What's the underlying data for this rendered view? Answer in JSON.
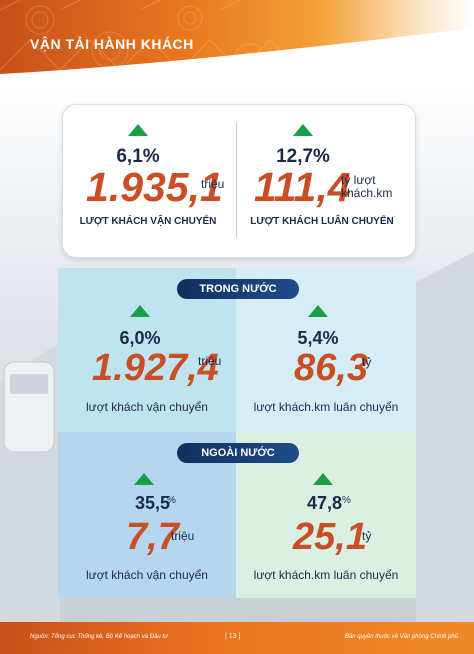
{
  "header": {
    "title": "VẬN TẢI HÀNH KHÁCH"
  },
  "summary": {
    "left": {
      "change": "6,1%",
      "value": "1.935,1",
      "unit": "triệu",
      "caption": "LƯỢT KHÁCH VẬN CHUYỂN"
    },
    "right": {
      "change": "12,7%",
      "value": "111,4",
      "unit": "tỷ lượt khách.km",
      "caption": "LƯỢT KHÁCH LUÂN CHUYỂN"
    }
  },
  "domestic": {
    "label": "TRONG NƯỚC",
    "left": {
      "change": "6,0%",
      "value": "1.927,4",
      "unit": "triệu",
      "caption": "lượt khách vận chuyển"
    },
    "right": {
      "change": "5,4%",
      "value": "86,3",
      "unit": "tỷ",
      "caption": "lượt khách.km luân chuyển"
    }
  },
  "international": {
    "label": "NGOÀI NƯỚC",
    "left": {
      "change": "35,5",
      "change_unit": "%",
      "value": "7,7",
      "unit": "triệu",
      "caption": "lượt khách vận chuyển"
    },
    "right": {
      "change": "47,8",
      "change_unit": "%",
      "value": "25,1",
      "unit": "tỷ",
      "caption": "lượt khách.km luân chuyển"
    }
  },
  "footer": {
    "source": "Nguồn: Tổng cục Thống kê, Bộ Kế hoạch và Đầu tư",
    "page": "| 13 |",
    "copyright": "Bản quyền thuộc về Văn phòng Chính phủ"
  },
  "colors": {
    "accent": "#c94e26",
    "up_arrow": "#1a9e47",
    "pill": "#10305e",
    "banner": "#e8761e"
  },
  "icons": {
    "increase": "up-triangle-icon"
  }
}
